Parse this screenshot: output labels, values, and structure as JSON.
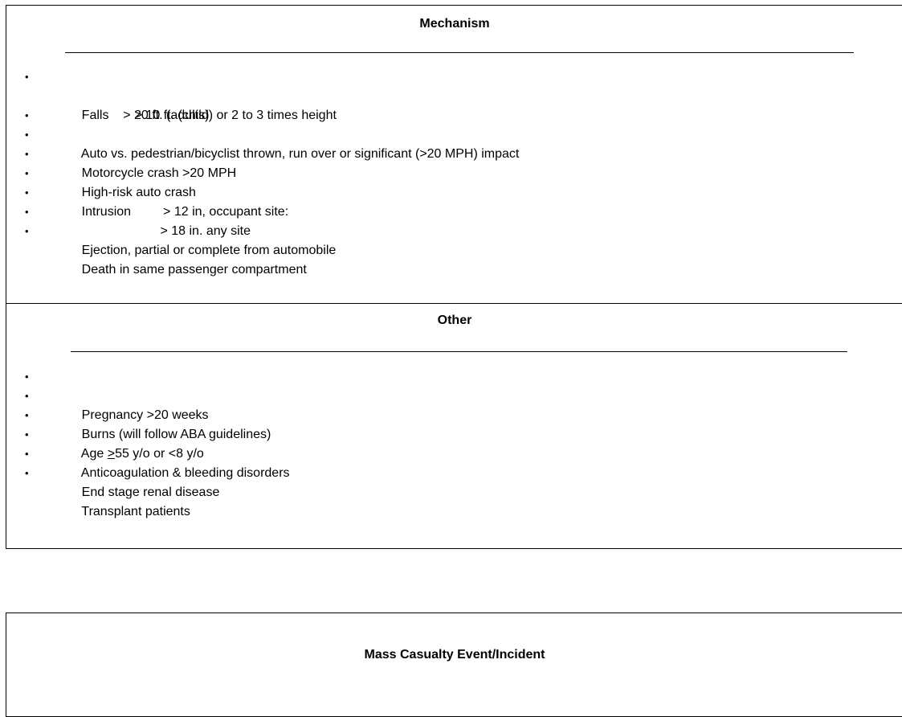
{
  "mechanism": {
    "heading": "Mechanism",
    "items": [
      {
        "bullet": "•",
        "text": "Falls    > 20 ft. (adults)"
      },
      {
        "bullet": "",
        "text": "> 10 ft. (child) or 2 to 3 times height"
      },
      {
        "bullet": "•",
        "text": "Auto vs. pedestrian/bicyclist thrown, run over or significant (>20 MPH) impact"
      },
      {
        "bullet": "•",
        "text": "Motorcycle crash >20 MPH"
      },
      {
        "bullet": "•",
        "text": "High-risk auto crash"
      },
      {
        "bullet": "•",
        "text": "Intrusion         > 12 in, occupant site:"
      },
      {
        "bullet": "•",
        "text": "                      > 18 in. any site"
      },
      {
        "bullet": "•",
        "text": "Ejection, partial or complete from automobile"
      },
      {
        "bullet": "•",
        "text": "Death in same passenger compartment"
      }
    ]
  },
  "other": {
    "heading": "Other",
    "items": [
      {
        "bullet": "•",
        "text": "Pregnancy >20 weeks"
      },
      {
        "bullet": "•",
        "text": "Burns (will follow ABA guidelines)"
      },
      {
        "bullet": "•",
        "text_prefix": "Age ",
        "text_underlined": ">",
        "text_suffix": "55 y/o or <8 y/o"
      },
      {
        "bullet": "•",
        "text": "Anticoagulation & bleeding disorders"
      },
      {
        "bullet": "•",
        "text": "End stage renal disease"
      },
      {
        "bullet": "•",
        "text": "Transplant patients"
      }
    ]
  },
  "mci": {
    "heading": "Mass Casualty Event/Incident"
  }
}
